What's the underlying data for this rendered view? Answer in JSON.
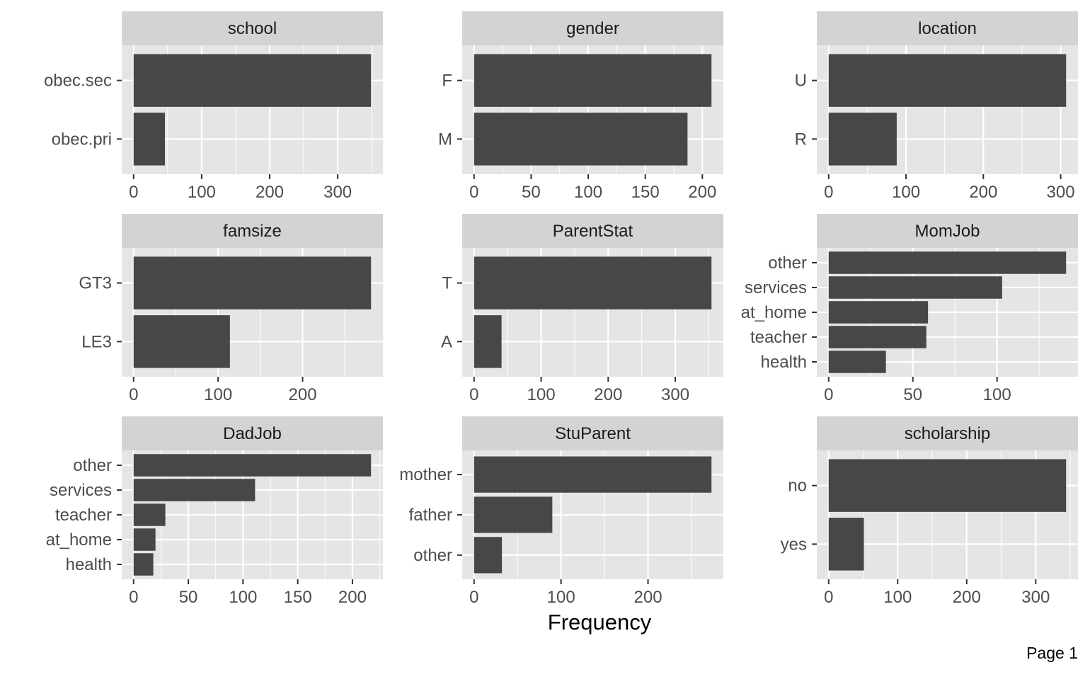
{
  "chart_data": {
    "type": "bar",
    "orientation": "horizontal",
    "xlabel": "Frequency",
    "page_label": "Page 1",
    "colors": {
      "bar": "#474747",
      "panel_bg": "#e5e5e5",
      "strip_bg": "#d3d3d3",
      "grid": "#ffffff",
      "tick_mark": "#333333"
    },
    "panels": [
      {
        "title": "school",
        "categories": [
          "obec.sec",
          "obec.pri"
        ],
        "values": [
          349,
          46
        ],
        "xlim": [
          -17.45,
          366.45
        ],
        "xticks": [
          0,
          100,
          200,
          300
        ]
      },
      {
        "title": "gender",
        "categories": [
          "F",
          "M"
        ],
        "values": [
          208,
          187
        ],
        "xlim": [
          -10.4,
          218.4
        ],
        "xticks": [
          0,
          50,
          100,
          150,
          200
        ]
      },
      {
        "title": "location",
        "categories": [
          "U",
          "R"
        ],
        "values": [
          307,
          88
        ],
        "xlim": [
          -15.35,
          322.35
        ],
        "xticks": [
          0,
          100,
          200,
          300
        ]
      },
      {
        "title": "famsize",
        "categories": [
          "GT3",
          "LE3"
        ],
        "values": [
          281,
          114
        ],
        "xlim": [
          -14.05,
          295.05
        ],
        "xticks": [
          0,
          100,
          200
        ]
      },
      {
        "title": "ParentStat",
        "categories": [
          "T",
          "A"
        ],
        "values": [
          354,
          41
        ],
        "xlim": [
          -17.7,
          371.7
        ],
        "xticks": [
          0,
          100,
          200,
          300
        ]
      },
      {
        "title": "MomJob",
        "categories": [
          "other",
          "services",
          "at_home",
          "teacher",
          "health"
        ],
        "values": [
          141,
          103,
          59,
          58,
          34
        ],
        "xlim": [
          -7.05,
          148.05
        ],
        "xticks": [
          0,
          50,
          100
        ]
      },
      {
        "title": "DadJob",
        "categories": [
          "other",
          "services",
          "teacher",
          "at_home",
          "health"
        ],
        "values": [
          217,
          111,
          29,
          20,
          18
        ],
        "xlim": [
          -10.85,
          227.85
        ],
        "xticks": [
          0,
          50,
          100,
          150,
          200
        ]
      },
      {
        "title": "StuParent",
        "categories": [
          "mother",
          "father",
          "other"
        ],
        "values": [
          273,
          90,
          32
        ],
        "xlim": [
          -13.65,
          286.65
        ],
        "xticks": [
          0,
          100,
          200
        ]
      },
      {
        "title": "scholarship",
        "categories": [
          "no",
          "yes"
        ],
        "values": [
          344,
          51
        ],
        "xlim": [
          -17.2,
          361.2
        ],
        "xticks": [
          0,
          100,
          200,
          300
        ]
      }
    ]
  }
}
